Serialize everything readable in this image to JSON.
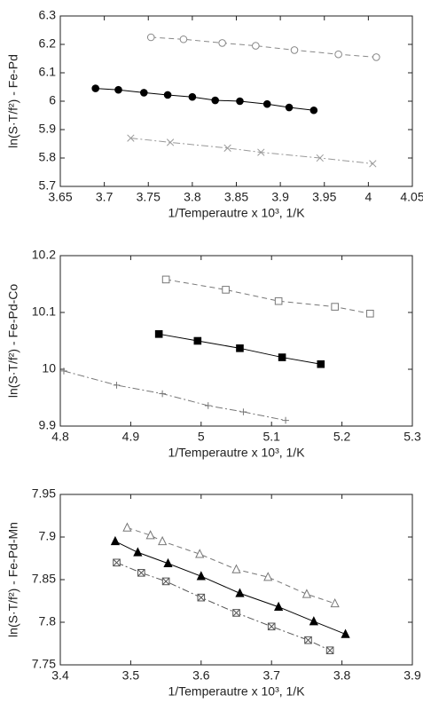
{
  "chart_data": [
    {
      "type": "scatter",
      "ylabel": "ln(S·T/f²) - Fe-Pd",
      "xlabel": "1/Temperautre x 10³, 1/K",
      "xlim": [
        3.65,
        4.05
      ],
      "ylim": [
        5.7,
        6.3
      ],
      "xticks": [
        3.65,
        3.7,
        3.75,
        3.8,
        3.85,
        3.9,
        3.95,
        4,
        4.05
      ],
      "yticks": [
        5.7,
        5.8,
        5.9,
        6,
        6.1,
        6.2,
        6.3
      ],
      "series": [
        {
          "marker": "circle-open",
          "line": "dashed",
          "color": "#888888",
          "x": [
            3.753,
            3.79,
            3.834,
            3.872,
            3.916,
            3.966,
            4.009
          ],
          "values": [
            6.225,
            6.218,
            6.205,
            6.195,
            6.18,
            6.165,
            6.155
          ]
        },
        {
          "marker": "circle-filled",
          "line": "solid",
          "color": "#000000",
          "x": [
            3.69,
            3.716,
            3.745,
            3.772,
            3.8,
            3.826,
            3.854,
            3.885,
            3.91,
            3.938
          ],
          "values": [
            6.045,
            6.04,
            6.03,
            6.022,
            6.015,
            6.003,
            6.0,
            5.99,
            5.978,
            5.968
          ]
        },
        {
          "marker": "x",
          "line": "dashdot",
          "color": "#999999",
          "x": [
            3.73,
            3.775,
            3.84,
            3.878,
            3.945,
            4.005
          ],
          "values": [
            5.87,
            5.855,
            5.835,
            5.82,
            5.8,
            5.78
          ]
        }
      ]
    },
    {
      "type": "scatter",
      "ylabel": "ln(S·T/f²) - Fe-Pd-Co",
      "xlabel": "1/Temperautre x 10³, 1/K",
      "xlim": [
        4.8,
        5.3
      ],
      "ylim": [
        9.9,
        10.2
      ],
      "xticks": [
        4.8,
        4.9,
        5,
        5.1,
        5.2,
        5.3
      ],
      "yticks": [
        9.9,
        10,
        10.1,
        10.2
      ],
      "series": [
        {
          "marker": "square-open",
          "line": "dashed",
          "color": "#777777",
          "x": [
            4.95,
            5.035,
            5.11,
            5.19,
            5.24
          ],
          "values": [
            10.158,
            10.14,
            10.12,
            10.11,
            10.098
          ]
        },
        {
          "marker": "square-filled",
          "line": "solid",
          "color": "#000000",
          "x": [
            4.94,
            4.995,
            5.055,
            5.115,
            5.17
          ],
          "values": [
            10.062,
            10.05,
            10.037,
            10.021,
            10.009
          ]
        },
        {
          "marker": "plus",
          "line": "dashdot",
          "color": "#777777",
          "x": [
            4.805,
            4.88,
            4.945,
            5.01,
            5.06,
            5.12
          ],
          "values": [
            9.997,
            9.972,
            9.957,
            9.936,
            9.925,
            9.91
          ]
        }
      ]
    },
    {
      "type": "scatter",
      "ylabel": "ln(S·T/f²) - Fe-Pd-Mn",
      "xlabel": "1/Temperautre x 10³, 1/K",
      "xlim": [
        3.4,
        3.9
      ],
      "ylim": [
        7.75,
        7.95
      ],
      "xticks": [
        3.4,
        3.5,
        3.6,
        3.7,
        3.8,
        3.9
      ],
      "yticks": [
        7.75,
        7.8,
        7.85,
        7.9,
        7.95
      ],
      "series": [
        {
          "marker": "triangle-open",
          "line": "dashed",
          "color": "#777777",
          "x": [
            3.495,
            3.528,
            3.545,
            3.598,
            3.65,
            3.695,
            3.75,
            3.79
          ],
          "values": [
            7.911,
            7.902,
            7.895,
            7.88,
            7.862,
            7.853,
            7.833,
            7.822
          ]
        },
        {
          "marker": "triangle-filled",
          "line": "solid",
          "color": "#000000",
          "x": [
            3.478,
            3.51,
            3.553,
            3.6,
            3.655,
            3.71,
            3.76,
            3.805
          ],
          "values": [
            7.895,
            7.882,
            7.869,
            7.854,
            7.834,
            7.818,
            7.801,
            7.786
          ]
        },
        {
          "marker": "square-hatched",
          "line": "dashdot",
          "color": "#555555",
          "x": [
            3.48,
            3.515,
            3.55,
            3.6,
            3.65,
            3.7,
            3.752,
            3.783
          ],
          "values": [
            7.87,
            7.858,
            7.848,
            7.829,
            7.811,
            7.795,
            7.779,
            7.767
          ]
        }
      ]
    }
  ]
}
